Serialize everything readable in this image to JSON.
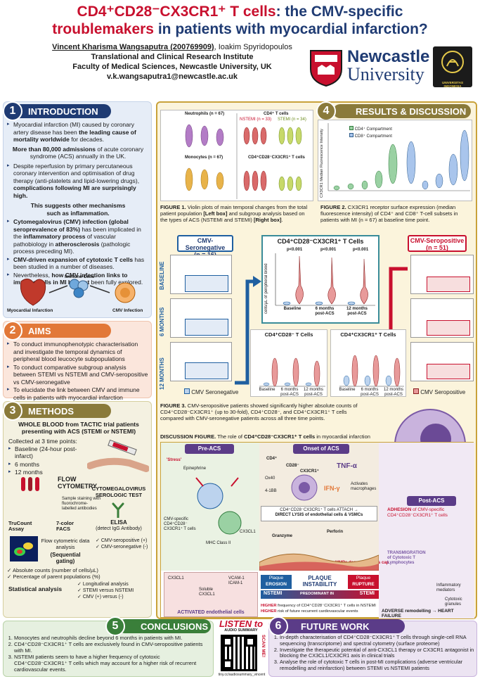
{
  "title": {
    "part1_red": "CD4⁺CD28⁻CX3CR1⁺ T cells",
    "part1_navy": ": the CMV-specific",
    "part2_red": "troublemakers",
    "part2_navy": " in patients with myocardial infarction?"
  },
  "authors": {
    "main": "Vincent Kharisma Wangsaputra (200769909)",
    "co": ", Ioakim Spyridopoulos",
    "inst1": "Translational and Clinical Research Institute",
    "inst2": "Faculty of Medical Sciences, Newcastle University, UK",
    "email": "v.k.wangsaputra1@newcastle.ac.uk"
  },
  "logos": {
    "newcastle_line1": "Newcastle",
    "newcastle_line2": "University",
    "ui": "UNIVERSITAS INDONESIA"
  },
  "sections": {
    "intro": {
      "num": "1",
      "title": "INTRODUCTION"
    },
    "aims": {
      "num": "2",
      "title": "AIMS"
    },
    "methods": {
      "num": "3",
      "title": "METHODS"
    },
    "results": {
      "num": "4",
      "title": "RESULTS & DISCUSSION"
    },
    "conclusions": {
      "num": "5",
      "title": "CONCLUSIONS"
    },
    "future": {
      "num": "6",
      "title": "FUTURE WORK"
    }
  },
  "intro": {
    "b1_a": "Myocardial infarction (MI) caused by coronary artery disease has been ",
    "b1_b": "the leading cause of mortality worldwide",
    "b1_c": " for decades.",
    "c1_a": "More than 80,000 admissions",
    "c1_b": " of acute coronary syndrome (ACS) annually in the UK.",
    "b2_a": "Despite reperfusion by primary percutaneous coronary intervention and optimisation of drug therapy (anti-platelets and lipid-lowering drugs), ",
    "b2_b": "complications following MI are surprisingly high.",
    "c2_a": "This suggests other mechanisms",
    "c2_b": "such as inflammation.",
    "b3_a": "Cytomegalovirus (CMV) infection (global seroprevalence of 83%)",
    "b3_b": " has been implicated in the ",
    "b3_c": "inflammatory process",
    "b3_d": " of vascular pathobiology in ",
    "b3_e": "atherosclerosis",
    "b3_f": " (pathologic process preceding MI).",
    "b4_a": "CMV-driven expansion of cytotoxic T cells",
    "b4_b": " has been studied in a number of diseases.",
    "b5_a": "Nevertheless, ",
    "b5_b": "how CMV infection links to immune cells in MI has not",
    "b5_c": " been fully explored.",
    "img_immune": "Immune Cells",
    "img_mi": "Myocardial Infarction",
    "img_cmv": "CMV Infection"
  },
  "aims": {
    "a1": "To conduct immunophenotypic characterisation and investigate the temporal dynamics of peripheral blood leucocyte subpopulations",
    "a2": "To conduct comparative subgroup analysis between STEMI vs NSTEMI and CMV-seropositive vs CMV-seronegative",
    "a3": "To elucidate the link between CMV and immune cells in patients with myocardial infarction"
  },
  "methods": {
    "blood_title": "WHOLE BLOOD from TACTIC trial patients presenting with ACS (STEMI or NSTEMI)",
    "collected": "Collected at 3 time points:",
    "tp1": "Baseline (24-hour post-infarct)",
    "tp2": "6 months",
    "tp3": "12 months",
    "flow": "FLOW CYTOMETRY",
    "staining": "Sample staining with fluorochrome-labelled antibodies",
    "trucount": "TruCount Assay",
    "facs": "7-color FACS",
    "flow_data": "Flow cytometric data analysis",
    "gating": "(Sequential gating)",
    "cmv_test": "CYTOMEGALOVIRUS SEROLOGIC TEST",
    "elisa": "ELISA",
    "elisa_sub": "(detect IgG Antibody)",
    "pos": "CMV-seropositive (+)",
    "neg": "CMV-seronegative (-)",
    "abs_counts": "Absolute counts (number of cells/µL)",
    "pct": "Percentage of parent populations (%)",
    "stat": "Statistical analysis",
    "s1": "Longitudinal analysis",
    "s2": "STEMI versus NSTEMI",
    "s3": "CMV (+) versus (-)"
  },
  "results": {
    "fig1_cap_a": "FIGURE 1.",
    "fig1_cap_b": " Violin plots of main temporal changes from the total patient population ",
    "fig1_cap_c": "[Left box]",
    "fig1_cap_d": " and subgroup analysis based on the types of ACS (NSTEMI and STEMI) ",
    "fig1_cap_e": "[Right box]",
    "fig1_cap_f": ".",
    "fig2_cap_a": "FIGURE 2.",
    "fig2_cap_b": " CX3CR1 receptor surface expression (median fluorescence intensity) of CD4⁺ and CD8⁺ T-cell subsets in patients with MI (n = 67) at baseline time point.",
    "neutro": "Neutrophils (n = 67)",
    "mono": "Monocytes (n = 67)",
    "cd4_t": "CD4⁺ T cells",
    "cd4cd28": "CD4⁺CD28⁻CX3CR1⁺ T cells",
    "nstemi_n": "NSTEMI (n = 33)",
    "stemi_n": "STEMI (n = 34)",
    "legend_cd4": "CD4⁺ Compartment",
    "legend_cd8": "CD8⁺ Compartment",
    "fig2_ylabel": "CX3CR1 Median Fluorescence Intensity",
    "neg_title": "CMV-Seronegative",
    "neg_n": "(n = 16)",
    "pos_title": "CMV-Seropositive",
    "pos_n": "(n = 51)",
    "baseline": "BASELINE",
    "m6": "6 MONTHS",
    "m12": "12 MONTHS",
    "neg_legend": "CMV Seronegative",
    "pos_legend": "CMV Seropositive",
    "central_title": "CD4⁺CD28⁻CX3CR1⁺ T Cells",
    "central_y": "cells/µL of peripheral blood",
    "p1": "p<0.001",
    "p2": "p<0.001",
    "p3": "p<0.001",
    "xl1": "Baseline",
    "xl2": "6 months post-ACS",
    "xl3": "12 months post-ACS",
    "sub1_title": "CD4⁺CD28⁻ T Cells",
    "sub2_title": "CD4⁺CX3CR1⁺ T Cells",
    "fig3_cap_a": "FIGURE 3.",
    "fig3_cap_b": " CMV-seropositive patients showed significantly higher absolute counts of CD4⁺CD28⁻CX3CR1⁺ (up to 30-fold), CD4⁺CD28⁻, and CD4⁺CX3CR1⁺ T cells compared with CMV-seronegative patients across all three time points.",
    "disc_a": "DISCUSSION FIGURE.",
    "disc_b": " The role of ",
    "disc_c": "CD4⁺CD28⁻CX3CR1⁺ T cells",
    "disc_d": " in myocardial infarction",
    "pre_acs": "Pre-ACS",
    "onset": "Onset of ACS",
    "post_acs": "Post-ACS",
    "stress": "'Stress'",
    "epinephrine": "Epinephrine",
    "cmv_specific": "CMV-specific CD4⁺CD28⁻ CX3CR1⁺ T cells",
    "mhc": "MHC Class II",
    "cx3cl1": "CX3CL1",
    "cd4": "CD4⁺",
    "cd28": "CD28⁻",
    "cx3cr1": "CX3CR1⁺",
    "ox40": "Ox40",
    "4_1bb": "4-1BB",
    "tnf": "TNF-α",
    "ifn": "IFN-γ",
    "activates": "Activates macrophages",
    "attach_a": "CD4⁺CD28⁻CX3CR1⁺ T cells ATTACH →",
    "attach_b": "DIRECT LYSIS of endothelial cells & VSMCs",
    "granzyme": "Granzyme",
    "perforin": "Perforin",
    "mmps": "MMPs degrade fibrous cap",
    "adhesion_a": "ADHESION",
    "adhesion_b": " of CMV-specific CD4⁺CD28⁻CX3CR1⁺ T cells",
    "transmig": "TRANSMIGRATION of Cytotoxic T Lymphocytes",
    "inflam_med": "Inflammatory mediators",
    "cytotoxic_gran": "Cytotoxic granules",
    "vcam": "VCAM-1 ICAM-1",
    "soluble": "Soluble CX3CL1",
    "activated_endo": "ACTIVATED endothelial cells",
    "plaque_erosion_a": "Plaque",
    "plaque_erosion_b": "EROSION",
    "plaque_inst_a": "PLAQUE",
    "plaque_inst_b": "INSTABILITY",
    "plaque_rupt_a": "Plaque",
    "plaque_rupt_b": "RUPTURE",
    "nstemi": "NSTEMI",
    "predominant": "PREDOMINANT IN",
    "stemi": "STEMI",
    "higher1_a": "HIGHER",
    "higher1_b": " frequency of CD4⁺CD28⁻CX3CR1⁺ T cells in NSTEMI",
    "higher2_a": "HIGHER",
    "higher2_b": " risk of future recurrent cardiovascular events",
    "adverse": "ADVERSE remodelling → HEART FAILURE"
  },
  "conclusions": {
    "c1": "Monocytes and neutrophils decline beyond 6 months in patients with MI.",
    "c2": "CD4⁺CD28⁻CX3CR1⁺ T cells are exclusively found in CMV-seropositive patients with MI.",
    "c3": "NSTEMI patients seem to have a higher frequency of cytotoxic CD4⁺CD28⁻CX3CR1⁺ T cells which may account for a higher risk of recurrent cardiovascular events."
  },
  "listen": {
    "title": "LISTEN to",
    "sub": "AUDIO SUMMARY",
    "scan": "SCAN ME!",
    "url": "tiny.cc/audiosummary_vincent"
  },
  "future": {
    "f1": "In-depth characterisation of CD4⁺CD28⁻CX3CR1⁺ T cells through single-cell RNA sequencing (transcriptome) and spectral cytometry (surface proteome)",
    "f2": "Investigate the therapeutic potential of anti-CX3CL1 therapy or CX3CR1 antagonist in blocking the CX3CL1/CX3CR1 axis in clinical trials",
    "f3": "Analyse the role of cytotoxic T cells in post-MI complications (adverse ventricular remodelling and reinfarction) between STEMI vs NSTEMI patients"
  },
  "colors": {
    "red": "#c8102e",
    "navy": "#1f3b73",
    "olive": "#8a7a3a",
    "orange": "#e27838",
    "purple": "#5b3c88",
    "green": "#3a7f3a"
  }
}
